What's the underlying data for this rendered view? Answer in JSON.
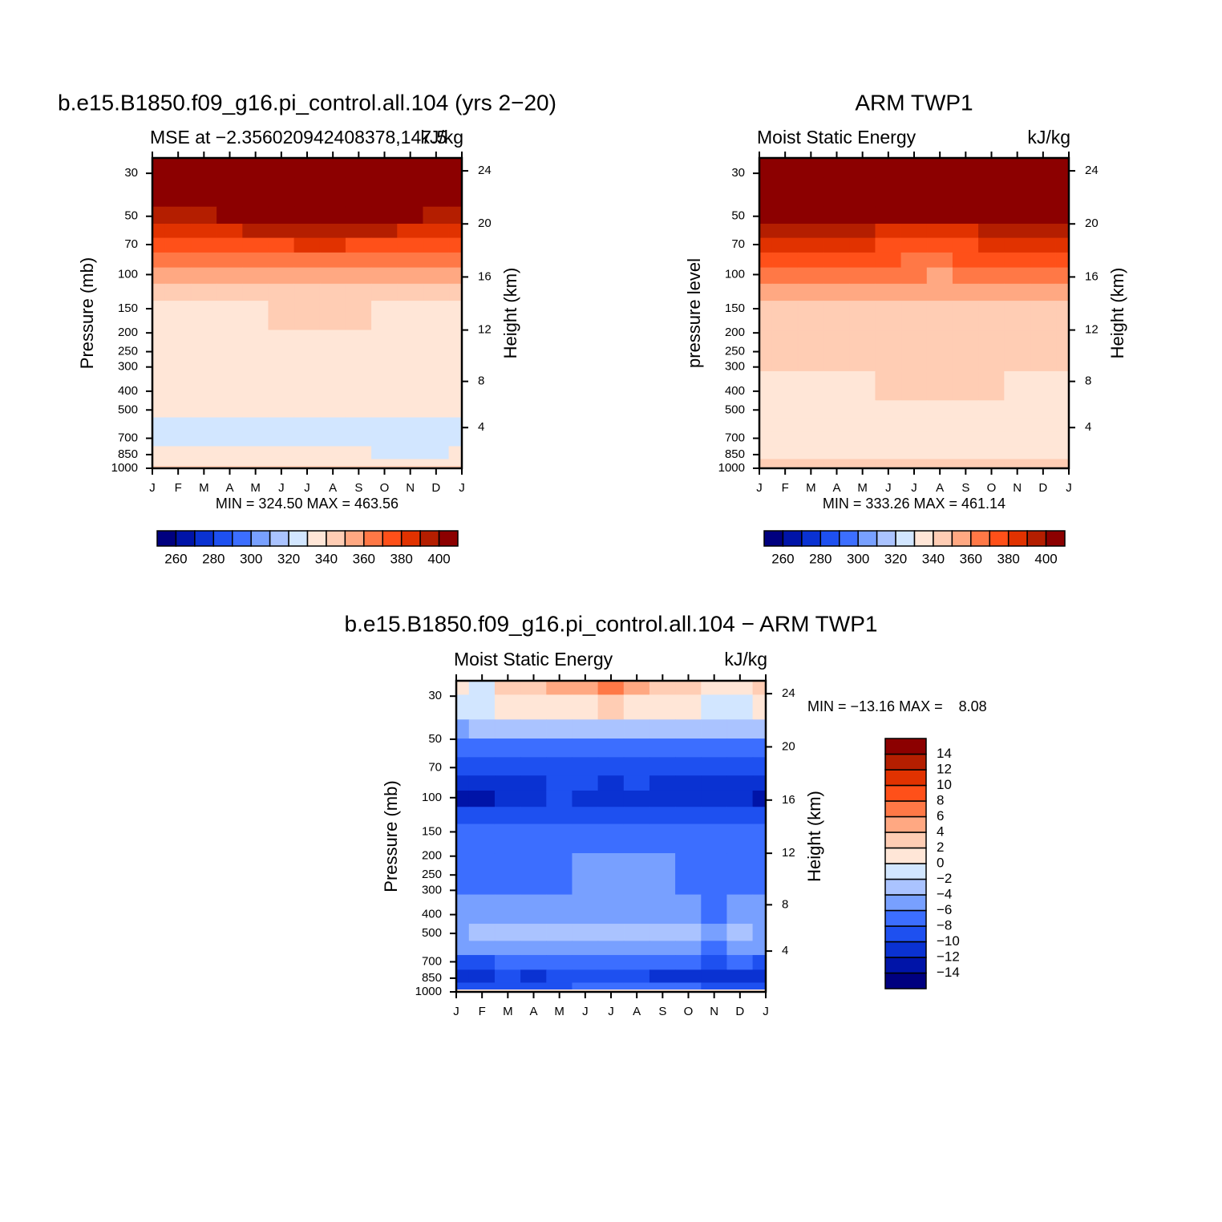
{
  "chart_data": [
    {
      "type": "contour",
      "title": "b.e15.B1850.f09_g16.pi_control.all.104 (yrs 2−20)",
      "left_string": "MSE at −2.356020942408378,147.5",
      "right_string": "kJ/kg",
      "ylabel": "Pressure (mb)",
      "y2label": "Height (km)",
      "min_max": "MIN = 324.50 MAX = 463.56",
      "categories": [
        "J",
        "F",
        "M",
        "A",
        "M",
        "J",
        "J",
        "A",
        "S",
        "O",
        "N",
        "D",
        "J"
      ],
      "y": [
        25,
        40,
        50,
        60,
        70,
        85,
        100,
        125,
        150,
        250,
        400,
        500,
        600,
        700,
        850,
        950,
        1000
      ],
      "z": [
        [
          420,
          420,
          420,
          420,
          420,
          420,
          420,
          420,
          420,
          420,
          420,
          420,
          420
        ],
        [
          410,
          410,
          410,
          410,
          410,
          410,
          410,
          410,
          410,
          410,
          410,
          410,
          410
        ],
        [
          398,
          398,
          399,
          401,
          403,
          405,
          406,
          405,
          404,
          402,
          400,
          398,
          398
        ],
        [
          385,
          386,
          387,
          388,
          390,
          392,
          393,
          393,
          392,
          390,
          388,
          386,
          385
        ],
        [
          372,
          373,
          374,
          375,
          377,
          379,
          380,
          380,
          379,
          377,
          375,
          373,
          372
        ],
        [
          362,
          362,
          363,
          364,
          366,
          368,
          369,
          369,
          368,
          366,
          364,
          362,
          362
        ],
        [
          352,
          352,
          352,
          352,
          352,
          353,
          353,
          353,
          353,
          352,
          352,
          352,
          352
        ],
        [
          345,
          345,
          345,
          345,
          345,
          345,
          345,
          345,
          345,
          345,
          345,
          345,
          345
        ],
        [
          338,
          338,
          338,
          338,
          338,
          341,
          342,
          342,
          342,
          339,
          337,
          337,
          338
        ],
        [
          335,
          335,
          335,
          335,
          335,
          335,
          335,
          335,
          335,
          335,
          335,
          335,
          335
        ],
        [
          334,
          334,
          334,
          334,
          334,
          334,
          334,
          334,
          334,
          334,
          334,
          334,
          334
        ],
        [
          333,
          333,
          333,
          333,
          333,
          333,
          332,
          331,
          331,
          330,
          331,
          331,
          332
        ],
        [
          329,
          329,
          328,
          328,
          329,
          328,
          327,
          326,
          326,
          326,
          327,
          327,
          328
        ],
        [
          326,
          326,
          326,
          326,
          326,
          326,
          326,
          326,
          326,
          326,
          326,
          326,
          326
        ],
        [
          330,
          330,
          330,
          330,
          330,
          331,
          331,
          330,
          330,
          329,
          329,
          329,
          330
        ],
        [
          336,
          336,
          336,
          336,
          336,
          336,
          336,
          336,
          336,
          336,
          336,
          336,
          336
        ],
        [
          342,
          342,
          342,
          342,
          342,
          342,
          342,
          342,
          342,
          342,
          342,
          342,
          342
        ]
      ],
      "ylim": [
        1000,
        25
      ],
      "log_y": true,
      "yticks": [
        30,
        50,
        70,
        100,
        150,
        200,
        250,
        300,
        400,
        500,
        700,
        850,
        1000
      ],
      "y2ticks": [
        4,
        8,
        12,
        16,
        20,
        24
      ],
      "colorbar": {
        "orientation": "horizontal",
        "levels": [
          260,
          270,
          280,
          290,
          300,
          310,
          320,
          330,
          340,
          350,
          360,
          370,
          380,
          390,
          400
        ],
        "labels": [
          260,
          280,
          300,
          320,
          340,
          360,
          380,
          400
        ],
        "colors": [
          "#00007f",
          "#0014a8",
          "#0a32d2",
          "#1e50f0",
          "#3c6eff",
          "#78a0ff",
          "#aac3ff",
          "#d2e6ff",
          "#ffe6d7",
          "#ffcdb4",
          "#ffa882",
          "#ff7846",
          "#ff5019",
          "#e13200",
          "#b41e00",
          "#8c0000"
        ]
      }
    },
    {
      "type": "contour",
      "title": "ARM TWP1",
      "left_string": "Moist Static Energy",
      "right_string": "kJ/kg",
      "ylabel": "pressure level",
      "y2label": "Height (km)",
      "min_max": "MIN = 333.26 MAX = 461.14",
      "categories": [
        "J",
        "F",
        "M",
        "A",
        "M",
        "J",
        "J",
        "A",
        "S",
        "O",
        "N",
        "D",
        "J"
      ],
      "y": [
        25,
        40,
        50,
        60,
        70,
        85,
        100,
        125,
        150,
        250,
        400,
        500,
        600,
        700,
        850,
        950,
        1000
      ],
      "z": [
        [
          420,
          420,
          420,
          420,
          420,
          420,
          420,
          420,
          420,
          420,
          420,
          420,
          420
        ],
        [
          410,
          410,
          410,
          410,
          410,
          410,
          410,
          410,
          410,
          410,
          410,
          410,
          410
        ],
        [
          404,
          404,
          403,
          403,
          403,
          402,
          402,
          401,
          402,
          403,
          403,
          404,
          404
        ],
        [
          393,
          392,
          391,
          391,
          390,
          389,
          388,
          388,
          389,
          390,
          391,
          392,
          393
        ],
        [
          382,
          382,
          381,
          380,
          380,
          379,
          378,
          378,
          379,
          380,
          381,
          382,
          382
        ],
        [
          372,
          372,
          372,
          371,
          371,
          370,
          369,
          369,
          370,
          371,
          371,
          372,
          372
        ],
        [
          363,
          363,
          362,
          362,
          362,
          361,
          360,
          359,
          360,
          361,
          362,
          363,
          363
        ],
        [
          354,
          354,
          354,
          354,
          354,
          354,
          354,
          354,
          354,
          354,
          354,
          354,
          354
        ],
        [
          347,
          347,
          347,
          347,
          347,
          347,
          347,
          347,
          347,
          347,
          347,
          347,
          347
        ],
        [
          344,
          344,
          344,
          344,
          344,
          344,
          344,
          344,
          344,
          344,
          344,
          344,
          344
        ],
        [
          339,
          339,
          339,
          339,
          339,
          341,
          342,
          342,
          342,
          342,
          339,
          339,
          339
        ],
        [
          336,
          336,
          336,
          336,
          336,
          336,
          336,
          336,
          336,
          336,
          336,
          336,
          336
        ],
        [
          335,
          335,
          335,
          335,
          335,
          335,
          335,
          335,
          335,
          335,
          335,
          335,
          335
        ],
        [
          335,
          335,
          335,
          335,
          335,
          335,
          335,
          335,
          335,
          335,
          335,
          335,
          335
        ],
        [
          339,
          339,
          338,
          339,
          339,
          338,
          338,
          338,
          338,
          338,
          339,
          339,
          339
        ],
        [
          342,
          342,
          342,
          342,
          342,
          342,
          342,
          342,
          342,
          342,
          342,
          342,
          342
        ],
        [
          343,
          343,
          343,
          343,
          343,
          343,
          343,
          343,
          343,
          343,
          343,
          343,
          343
        ]
      ],
      "ylim": [
        1000,
        25
      ],
      "log_y": true,
      "yticks": [
        30,
        50,
        70,
        100,
        150,
        200,
        250,
        300,
        400,
        500,
        700,
        850,
        1000
      ],
      "y2ticks": [
        4,
        8,
        12,
        16,
        20,
        24
      ],
      "colorbar": {
        "orientation": "horizontal",
        "levels": [
          260,
          270,
          280,
          290,
          300,
          310,
          320,
          330,
          340,
          350,
          360,
          370,
          380,
          390,
          400
        ],
        "labels": [
          260,
          280,
          300,
          320,
          340,
          360,
          380,
          400
        ],
        "colors": [
          "#00007f",
          "#0014a8",
          "#0a32d2",
          "#1e50f0",
          "#3c6eff",
          "#78a0ff",
          "#aac3ff",
          "#d2e6ff",
          "#ffe6d7",
          "#ffcdb4",
          "#ffa882",
          "#ff7846",
          "#ff5019",
          "#e13200",
          "#b41e00",
          "#8c0000"
        ]
      }
    },
    {
      "type": "contour",
      "title": "b.e15.B1850.f09_g16.pi_control.all.104 − ARM TWP1",
      "left_string": "Moist Static Energy",
      "right_string": "kJ/kg",
      "ylabel": "Pressure (mb)",
      "y2label": "Height (km)",
      "min_max": "MIN = −13.16 MAX =    8.08",
      "categories": [
        "J",
        "F",
        "M",
        "A",
        "M",
        "J",
        "J",
        "A",
        "S",
        "O",
        "N",
        "D",
        "J"
      ],
      "y": [
        25,
        35,
        45,
        55,
        70,
        85,
        100,
        125,
        150,
        250,
        400,
        500,
        600,
        700,
        850,
        950,
        1000
      ],
      "z": [
        [
          1,
          -1,
          2,
          3,
          5,
          4,
          7,
          4,
          3,
          2,
          0,
          1,
          2
        ],
        [
          -2,
          -2,
          0,
          1,
          1,
          1,
          2,
          1,
          1,
          0,
          -1,
          -1,
          0
        ],
        [
          -5,
          -4,
          -3,
          -3,
          -3,
          -3,
          -4,
          -3,
          -3,
          -3,
          -4,
          -4,
          -4
        ],
        [
          -8,
          -8,
          -7,
          -7,
          -7,
          -7,
          -8,
          -7,
          -7,
          -7,
          -8,
          -8,
          -8
        ],
        [
          -10,
          -10,
          -10,
          -10,
          -9,
          -9,
          -10,
          -9,
          -9,
          -10,
          -10,
          -10,
          -10
        ],
        [
          -12,
          -12,
          -12,
          -12,
          -10,
          -10,
          -11,
          -10,
          -11,
          -11,
          -11,
          -12,
          -12
        ],
        [
          -13,
          -13,
          -12,
          -12,
          -10,
          -11,
          -12,
          -12,
          -12,
          -12,
          -12,
          -12,
          -13
        ],
        [
          -10,
          -10,
          -10,
          -10,
          -9,
          -9,
          -9,
          -9,
          -9,
          -9,
          -9,
          -9,
          -10
        ],
        [
          -7,
          -7,
          -7,
          -7,
          -7,
          -7,
          -7,
          -7,
          -7,
          -7,
          -7,
          -7,
          -7
        ],
        [
          -7,
          -7,
          -7,
          -7,
          -7,
          -5,
          -5,
          -5,
          -5,
          -7,
          -7,
          -7,
          -7
        ],
        [
          -6,
          -6,
          -5,
          -5,
          -5,
          -5,
          -5,
          -5,
          -5,
          -6,
          -7,
          -6,
          -6
        ],
        [
          -5,
          -4,
          -3,
          -3,
          -4,
          -3,
          -3,
          -4,
          -4,
          -4,
          -5,
          -4,
          -5
        ],
        [
          -6,
          -6,
          -6,
          -5,
          -5,
          -6,
          -6,
          -6,
          -6,
          -6,
          -7,
          -6,
          -6
        ],
        [
          -9,
          -9,
          -8,
          -8,
          -8,
          -7,
          -7,
          -7,
          -8,
          -8,
          -9,
          -8,
          -9
        ],
        [
          -12,
          -11,
          -10,
          -12,
          -10,
          -9,
          -9,
          -10,
          -11,
          -12,
          -12,
          -12,
          -12
        ],
        [
          -9,
          -9,
          -9,
          -9,
          -9,
          -8,
          -8,
          -8,
          -8,
          -8,
          -9,
          -9,
          -9
        ],
        [
          0,
          0,
          0,
          0,
          0,
          0,
          0,
          0,
          0,
          0,
          0,
          0,
          0
        ]
      ],
      "ylim": [
        1000,
        25
      ],
      "log_y": true,
      "yticks": [
        30,
        50,
        70,
        100,
        150,
        200,
        250,
        300,
        400,
        500,
        700,
        850,
        1000
      ],
      "y2ticks": [
        4,
        8,
        12,
        16,
        20,
        24
      ],
      "colorbar": {
        "orientation": "vertical",
        "levels": [
          {
            "value": -14,
            "label": "−14"
          },
          {
            "value": -12,
            "label": "−12"
          },
          {
            "value": -10,
            "label": "−10"
          },
          {
            "value": -8,
            "label": "−8"
          },
          {
            "value": -6,
            "label": "−6"
          },
          {
            "value": -4,
            "label": "−4"
          },
          {
            "value": -2,
            "label": "−2"
          },
          0,
          2,
          4,
          6,
          8,
          10,
          12,
          14
        ],
        "colors": [
          "#00007f",
          "#0014a8",
          "#0a32d2",
          "#1e50f0",
          "#3c6eff",
          "#78a0ff",
          "#aac3ff",
          "#d2e6ff",
          "#ffe6d7",
          "#ffcdb4",
          "#ffa882",
          "#ff7846",
          "#ff5019",
          "#e13200",
          "#b41e00",
          "#8c0000"
        ]
      }
    }
  ]
}
